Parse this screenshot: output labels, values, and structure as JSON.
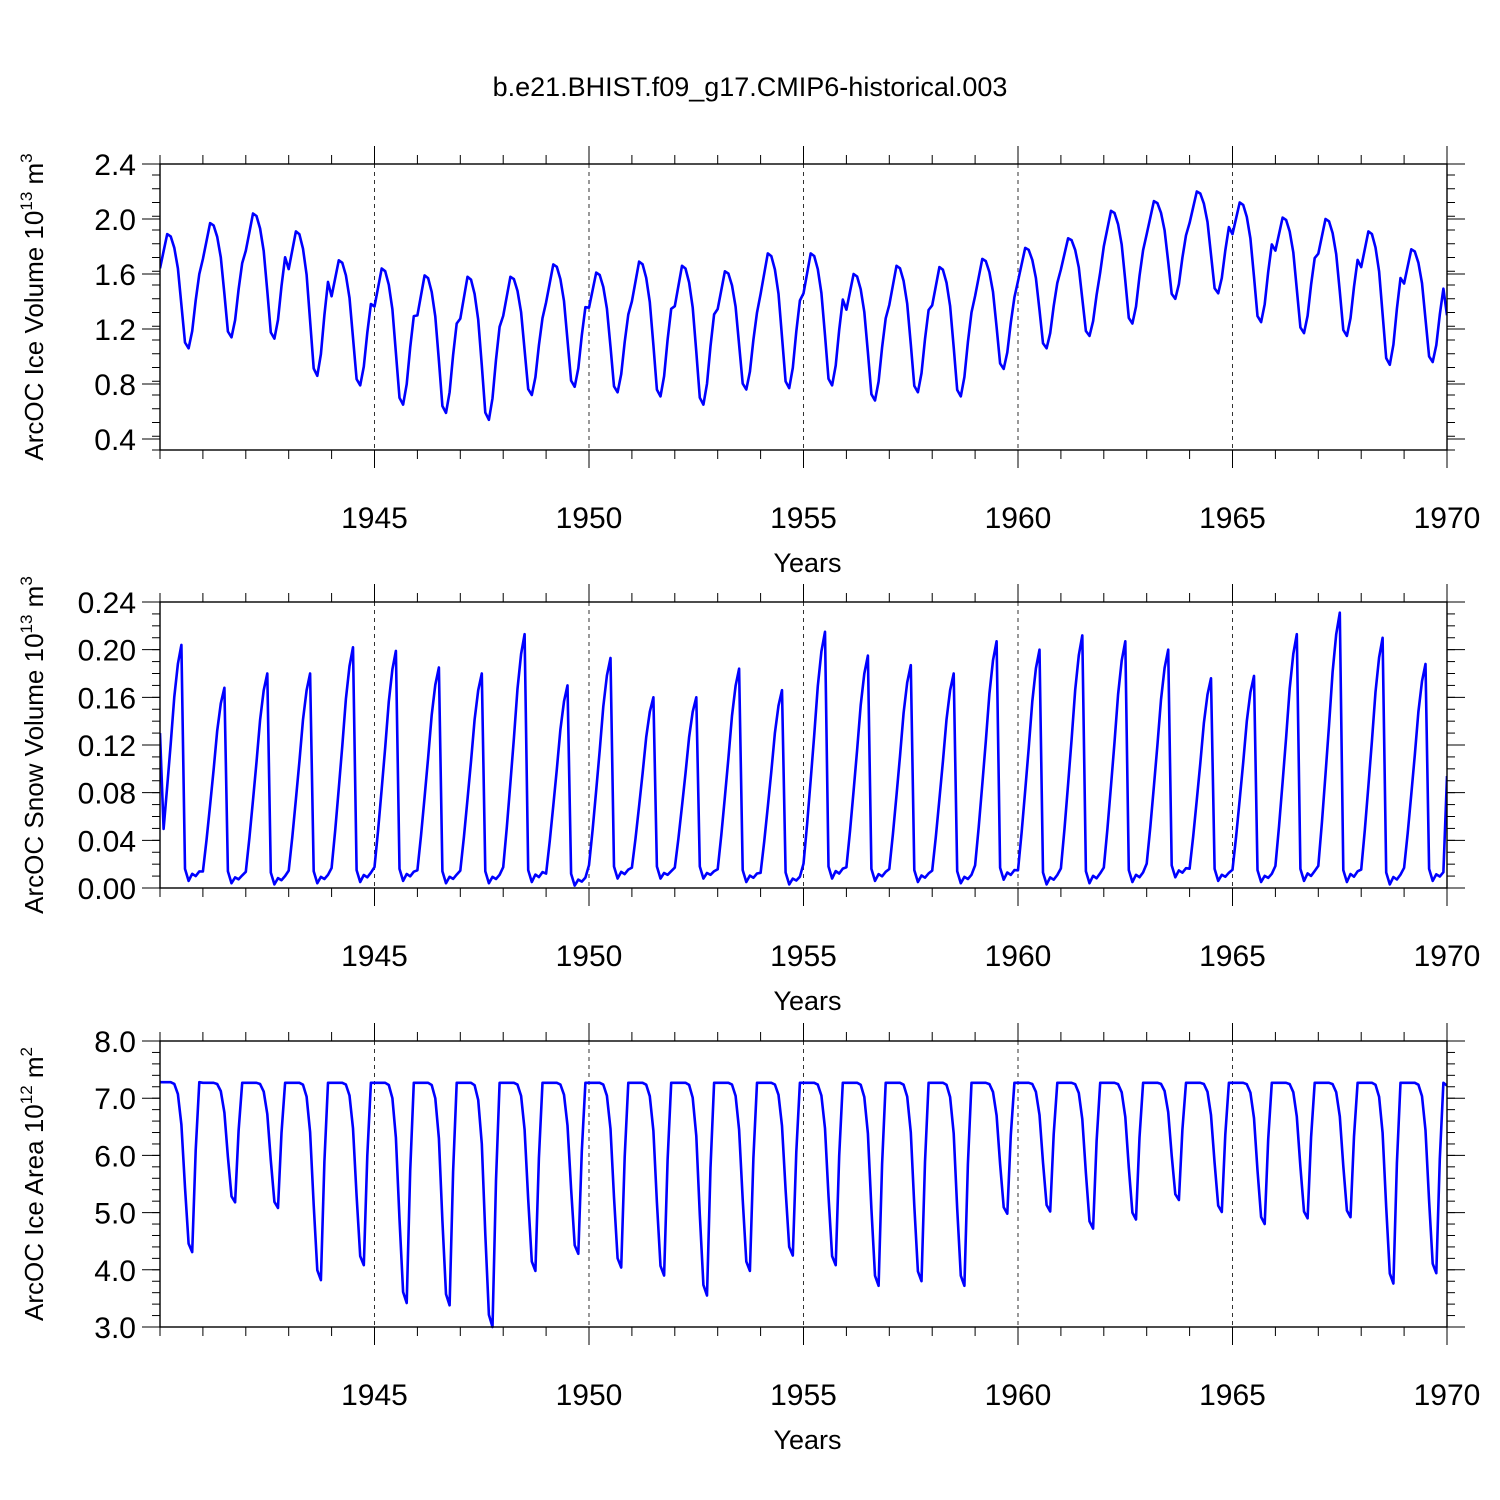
{
  "title": "b.e21.BHIST.f09_g17.CMIP6-historical.003",
  "chart_data": [
    {
      "type": "line",
      "ylabel": "ArcOC Ice Volume 10",
      "ylabel_exp": "13",
      "ylabel_unit": " m",
      "ylabel_unit_exp": "3",
      "xlabel": "Years",
      "xlim": [
        1940.0,
        1970.0
      ],
      "ylim": [
        0.32,
        2.4
      ],
      "yticks": [
        0.4,
        0.8,
        1.2,
        1.6,
        2.0,
        2.4
      ],
      "ytick_labels": [
        "0.4",
        "0.8",
        "1.2",
        "1.6",
        "2.0",
        "2.4"
      ],
      "yminor": 0.1,
      "xticks": [
        1945,
        1950,
        1955,
        1960,
        1965,
        1970
      ],
      "xtick_labels": [
        "1945",
        "1950",
        "1955",
        "1960",
        "1965",
        "1970"
      ],
      "series": [
        {
          "name": "ArcOC Ice Volume",
          "color": "#0000ff",
          "start_year": 1940.0,
          "max": [
            1.89,
            1.97,
            2.04,
            1.91,
            1.7,
            1.64,
            1.59,
            1.58,
            1.58,
            1.67,
            1.61,
            1.69,
            1.66,
            1.62,
            1.75,
            1.75,
            1.6,
            1.66,
            1.65,
            1.71,
            1.79,
            1.86,
            2.06,
            2.13,
            2.2,
            2.12,
            2.01,
            2.0,
            1.91,
            1.78
          ],
          "min": [
            1.06,
            1.14,
            1.13,
            0.86,
            0.79,
            0.65,
            0.59,
            0.54,
            0.72,
            0.78,
            0.74,
            0.71,
            0.65,
            0.76,
            0.77,
            0.79,
            0.68,
            0.74,
            0.71,
            0.91,
            1.06,
            1.15,
            1.24,
            1.42,
            1.46,
            1.25,
            1.17,
            1.15,
            0.94,
            0.96
          ],
          "end_value": 1.3
        }
      ]
    },
    {
      "type": "line",
      "ylabel": "ArcOC Snow Volume 10",
      "ylabel_exp": "13",
      "ylabel_unit": " m",
      "ylabel_unit_exp": "3",
      "xlabel": "Years",
      "xlim": [
        1940.0,
        1970.0
      ],
      "ylim": [
        0.0,
        0.24
      ],
      "yticks": [
        0.0,
        0.04,
        0.08,
        0.12,
        0.16,
        0.2,
        0.24
      ],
      "ytick_labels": [
        "0.00",
        "0.04",
        "0.08",
        "0.12",
        "0.16",
        "0.20",
        "0.24"
      ],
      "yminor": 0.01,
      "xticks": [
        1945,
        1950,
        1955,
        1960,
        1965,
        1970
      ],
      "xtick_labels": [
        "1945",
        "1950",
        "1955",
        "1960",
        "1965",
        "1970"
      ],
      "series": [
        {
          "name": "ArcOC Snow Volume",
          "color": "#0000ff",
          "start_year": 1940.0,
          "max": [
            0.204,
            0.168,
            0.18,
            0.18,
            0.202,
            0.199,
            0.185,
            0.18,
            0.213,
            0.17,
            0.193,
            0.16,
            0.16,
            0.184,
            0.166,
            0.215,
            0.195,
            0.187,
            0.18,
            0.207,
            0.2,
            0.212,
            0.207,
            0.2,
            0.176,
            0.178,
            0.213,
            0.231,
            0.21,
            0.188
          ],
          "min": [
            0.006,
            0.004,
            0.003,
            0.004,
            0.005,
            0.006,
            0.004,
            0.004,
            0.005,
            0.002,
            0.008,
            0.008,
            0.008,
            0.005,
            0.003,
            0.008,
            0.006,
            0.005,
            0.004,
            0.007,
            0.003,
            0.004,
            0.005,
            0.009,
            0.006,
            0.005,
            0.006,
            0.005,
            0.003,
            0.006
          ],
          "start_value": 0.13,
          "end_value": 0.094
        }
      ]
    },
    {
      "type": "line",
      "ylabel": "ArcOC Ice Area 10",
      "ylabel_exp": "12",
      "ylabel_unit": " m",
      "ylabel_unit_exp": "2",
      "xlabel": "Years",
      "xlim": [
        1940.0,
        1970.0
      ],
      "ylim": [
        3.0,
        8.0
      ],
      "yticks": [
        3.0,
        4.0,
        5.0,
        6.0,
        7.0,
        8.0
      ],
      "ytick_labels": [
        "3.0",
        "4.0",
        "5.0",
        "6.0",
        "7.0",
        "8.0"
      ],
      "yminor": 0.2,
      "xticks": [
        1945,
        1950,
        1955,
        1960,
        1965,
        1970
      ],
      "xtick_labels": [
        "1945",
        "1950",
        "1955",
        "1960",
        "1965",
        "1970"
      ],
      "series": [
        {
          "name": "ArcOC Ice Area",
          "color": "#0000ff",
          "start_year": 1940.0,
          "max": [
            7.28,
            7.27,
            7.27,
            7.27,
            7.27,
            7.27,
            7.27,
            7.27,
            7.27,
            7.27,
            7.27,
            7.27,
            7.27,
            7.27,
            7.27,
            7.27,
            7.27,
            7.27,
            7.27,
            7.27,
            7.27,
            7.27,
            7.27,
            7.27,
            7.27,
            7.27,
            7.27,
            7.27,
            7.27,
            7.27
          ],
          "min": [
            4.31,
            5.18,
            5.08,
            3.82,
            4.08,
            3.42,
            3.38,
            3.0,
            3.98,
            4.28,
            4.04,
            3.9,
            3.55,
            3.98,
            4.25,
            4.08,
            3.72,
            3.8,
            3.72,
            4.98,
            5.02,
            4.72,
            4.88,
            5.22,
            5.01,
            4.8,
            4.9,
            4.92,
            3.76,
            3.94
          ],
          "end_value": 7.22
        }
      ]
    }
  ]
}
